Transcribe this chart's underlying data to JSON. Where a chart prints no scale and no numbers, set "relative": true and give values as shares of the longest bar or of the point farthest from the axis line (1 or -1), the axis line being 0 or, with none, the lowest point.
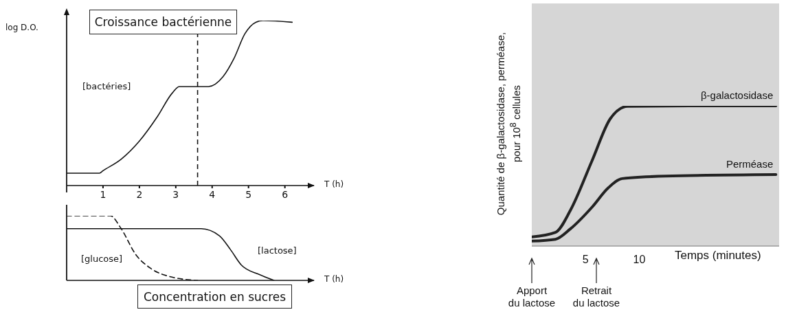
{
  "chart_data": [
    {
      "type": "line",
      "title": "Croissance bactérienne",
      "ylabel": "log D.O.",
      "xlabel": "T (h)",
      "relative": true,
      "xlim": [
        0,
        6.8
      ],
      "xticks": [
        1,
        2,
        3,
        4,
        5,
        6
      ],
      "series": [
        {
          "name": "[bactéries]",
          "color": "#111111",
          "line_style": "solid",
          "x": [
            0,
            0.9,
            1,
            1.5,
            2,
            2.5,
            2.9,
            3.1,
            3.5,
            3.9,
            4.3,
            4.6,
            4.9,
            5.2,
            5.4,
            6.2
          ],
          "values": [
            0.075,
            0.075,
            0.09,
            0.16,
            0.27,
            0.42,
            0.56,
            0.6,
            0.6,
            0.6,
            0.66,
            0.77,
            0.92,
            0.99,
            1,
            0.99
          ]
        }
      ],
      "ref_lines": [
        {
          "axis": "x",
          "value": 3.6,
          "color": "#111111",
          "line_style": "dashed"
        }
      ]
    },
    {
      "type": "line",
      "title": "Concentration en sucres",
      "xlabel": "T (h)",
      "relative": true,
      "xlim": [
        0,
        6.8
      ],
      "tick_labels": false,
      "series": [
        {
          "name": "[glucose]",
          "color": "#111111",
          "line_style": "dashed",
          "x": [
            0,
            1.2,
            1.5,
            1.9,
            2.3,
            2.9,
            3.6
          ],
          "values": [
            1,
            1,
            0.8,
            0.4,
            0.19,
            0.05,
            0
          ]
        },
        {
          "name": "[lactose]",
          "color": "#111111",
          "line_style": "solid",
          "x": [
            0,
            3.7,
            4.2,
            4.5,
            4.8,
            5.3,
            5.7
          ],
          "values": [
            0.8,
            0.8,
            0.69,
            0.48,
            0.24,
            0.09,
            0
          ]
        }
      ]
    },
    {
      "type": "line",
      "ylabel": "Quantité de β-galactosidase, perméase, pour 10$^{8}$ cellules",
      "xlabel": "Temps (minutes)",
      "relative": true,
      "xlim": [
        0,
        23
      ],
      "xticks": [
        5,
        10
      ],
      "series": [
        {
          "name": "β-galactosidase",
          "color": "#222222",
          "line_style": "solid",
          "x": [
            0,
            2.2,
            3.6,
            5.6,
            7.3,
            8.9,
            14.7,
            22.7
          ],
          "values": [
            0.065,
            0.097,
            0.256,
            0.608,
            0.908,
            0.996,
            1,
            1
          ]
        },
        {
          "name": "Perméase",
          "color": "#222222",
          "line_style": "solid",
          "x": [
            0,
            2.2,
            3.6,
            5.6,
            7.1,
            8.4,
            12.4,
            22.7
          ],
          "values": [
            0.035,
            0.048,
            0.123,
            0.277,
            0.414,
            0.481,
            0.499,
            0.51
          ]
        }
      ],
      "annotations": [
        "Apport du lactose",
        "Retrait du lactose"
      ]
    }
  ]
}
